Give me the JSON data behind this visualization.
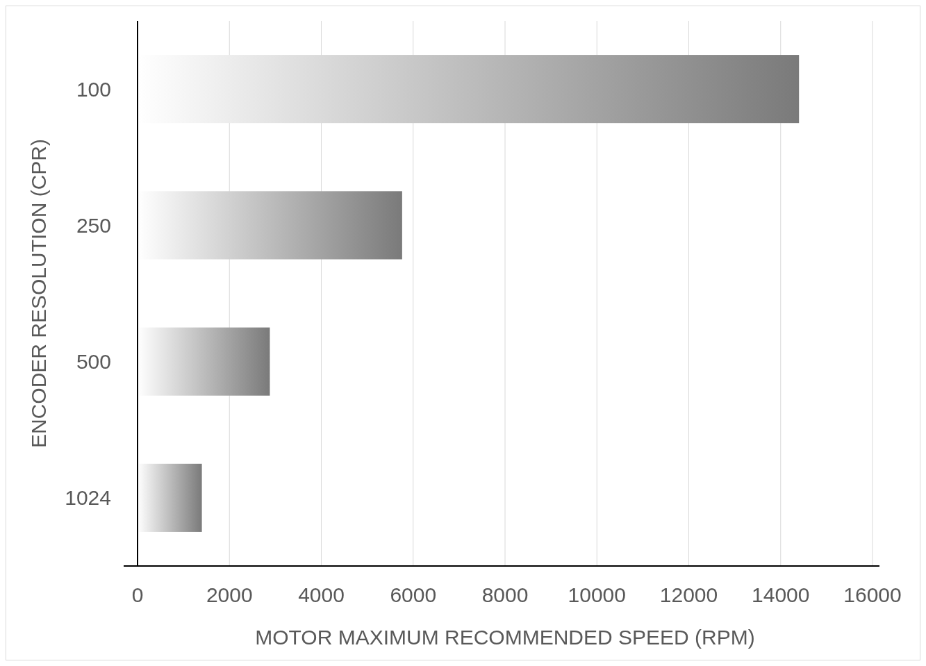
{
  "chart_data": {
    "type": "bar",
    "orientation": "horizontal",
    "xlabel": "MOTOR MAXIMUM RECOMMENDED SPEED (RPM)",
    "ylabel": "ENCODER RESOLUTION (CPR)",
    "categories": [
      "100",
      "250",
      "500",
      "1024"
    ],
    "values": [
      14400,
      5760,
      2880,
      1400
    ],
    "color": "#7a7a7a",
    "xlim": [
      0,
      16000
    ],
    "xticks": [
      0,
      2000,
      4000,
      6000,
      8000,
      10000,
      12000,
      14000,
      16000
    ],
    "grid": "x"
  }
}
